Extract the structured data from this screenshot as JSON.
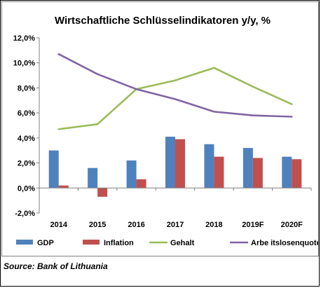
{
  "chart_data": {
    "type": "bar",
    "title": "Wirtschaftliche Schlüsselindikatoren y/y, %",
    "categories": [
      "2014",
      "2015",
      "2016",
      "2017",
      "2018",
      "2019F",
      "2020F"
    ],
    "ylim": [
      -2,
      12
    ],
    "yticks": [
      -2,
      0,
      2,
      4,
      6,
      8,
      10,
      12
    ],
    "ytick_labels": [
      "-2,0%",
      "0,0%",
      "2,0%",
      "4,0%",
      "6,0%",
      "8,0%",
      "10,0%",
      "12,0%"
    ],
    "xlabel": "",
    "ylabel": "",
    "grid": false,
    "legend_position": "bottom",
    "series": [
      {
        "name": "GDP",
        "type": "bar",
        "color": "#4f81bd",
        "values": [
          3.0,
          1.6,
          2.2,
          4.1,
          3.5,
          3.2,
          2.5
        ]
      },
      {
        "name": "Inflation",
        "type": "bar",
        "color": "#c0504d",
        "values": [
          0.2,
          -0.7,
          0.7,
          3.9,
          2.5,
          2.4,
          2.3
        ]
      },
      {
        "name": "Gehalt",
        "type": "line",
        "color": "#9bbb59",
        "values": [
          4.7,
          5.1,
          7.9,
          8.6,
          9.6,
          8.1,
          6.7
        ]
      },
      {
        "name": "Arbe itslosenquote",
        "type": "line",
        "color": "#8064a2",
        "values": [
          10.7,
          9.1,
          7.9,
          7.1,
          6.1,
          5.8,
          5.7
        ]
      }
    ]
  },
  "source": "Source: Bank of Lithuania"
}
